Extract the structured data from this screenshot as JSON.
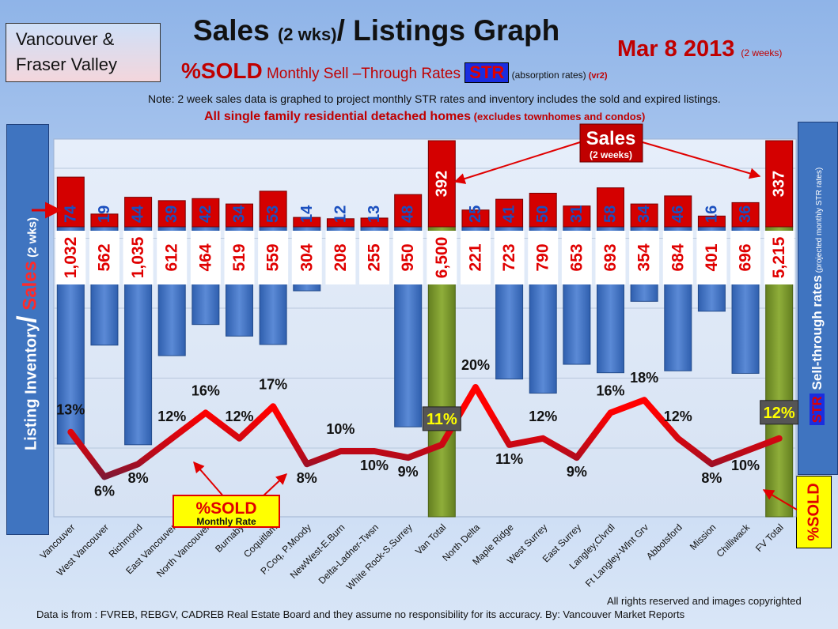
{
  "header": {
    "region_line1": "Vancouver &",
    "region_line2": "Fraser Valley",
    "title_main": "Sales ",
    "title_small": "(2 wks)",
    "title_end": "/ Listings Graph",
    "date_main": "Mar 8 2013",
    "date_small": "(2 weeks)",
    "sub_sold": "%SOLD",
    "sub_rate": " Monthly Sell –Through Rates ",
    "str_label": "STR",
    "sub_absorption": " (absorption rates)",
    "sub_version": " (vr2)",
    "note": "Note: 2 week sales data is graphed to project monthly STR rates and inventory includes the sold and expired listings.",
    "subnote_main": "All single family residential detached homes",
    "subnote_small": " (excludes townhomes and condos)"
  },
  "left_axis": {
    "part1": "Listing Inventory",
    "slash": "/",
    "part2": " Sales",
    "part3": " (2 wks)"
  },
  "right_axis": {
    "str": "STR",
    "text": " Sell-through rates",
    "small": " (projected monthly STR rates)"
  },
  "callouts": {
    "sales_main": "Sales",
    "sales_sub": "(2 weeks)",
    "sold_main": "%SOLD",
    "sold_sub": "Monthly Rate",
    "sold_side": "%SOLD"
  },
  "colors": {
    "listing_bar": "#3a6fc4",
    "total_bar": "#7a9a2a",
    "sales_bar": "#d40000",
    "line_high": "#ff0000",
    "line_low": "#2a2a5a",
    "sales_label": "#1a4fbf"
  },
  "footer": {
    "rights": "All rights reserved and images copyrighted",
    "source": "Data is from : FVREB, REBGV, CADREB Real Estate Board and they assume no responsibility for its accuracy. By: Vancouver Market Reports"
  },
  "chart_data": {
    "type": "bar",
    "categories": [
      "Vancouver",
      "West Vancouver",
      "Richmond",
      "East Vancouver",
      "North Vancouver",
      "Burnaby",
      "Coquitlam",
      "P.Coq, P.Moody",
      "NewWest-E.Burn",
      "Delta-Ladner-Twsn",
      "White Rock-S.Surrey",
      "Van Total",
      "North Delta",
      "Maple Ridge",
      "West Surrey",
      "East Surrey",
      "Langley,Clvrdl",
      "Ft Langley-Wlnt Grv",
      "Abbotsford",
      "Mission",
      "Chilliwack",
      "FV Total"
    ],
    "series": [
      {
        "name": "Listing Inventory",
        "values": [
          1032,
          562,
          1035,
          612,
          464,
          519,
          559,
          304,
          208,
          255,
          950,
          6500,
          221,
          723,
          790,
          653,
          693,
          354,
          684,
          401,
          696,
          5215
        ]
      },
      {
        "name": "Sales",
        "values": [
          74,
          19,
          44,
          39,
          42,
          34,
          53,
          14,
          12,
          13,
          48,
          392,
          25,
          41,
          50,
          31,
          58,
          34,
          46,
          16,
          36,
          337
        ]
      },
      {
        "name": "%SOLD",
        "values": [
          13,
          6,
          8,
          12,
          16,
          12,
          17,
          8,
          10,
          10,
          9,
          11,
          20,
          11,
          12,
          9,
          16,
          18,
          12,
          8,
          10,
          12
        ]
      }
    ],
    "inventory_labels": [
      "1,032",
      "562",
      "1,035",
      "612",
      "464",
      "519",
      "559",
      "304",
      "208",
      "255",
      "950",
      "6,500",
      "221",
      "723",
      "790",
      "653",
      "693",
      "354",
      "684",
      "401",
      "696",
      "5,215"
    ],
    "sales_labels": [
      "74",
      "19",
      "44",
      "39",
      "42",
      "34",
      "53",
      "14",
      "12",
      "13",
      "48",
      "392",
      "25",
      "41",
      "50",
      "31",
      "58",
      "34",
      "46",
      "16",
      "36",
      "337"
    ],
    "percent_labels": [
      "13%",
      "6%",
      "8%",
      "12%",
      "16%",
      "12%",
      "17%",
      "8%",
      "10%",
      "10%",
      "9%",
      "11%",
      "20%",
      "11%",
      "12%",
      "9%",
      "16%",
      "18%",
      "12%",
      "8%",
      "10%",
      "12%"
    ],
    "total_indices": [
      11,
      21
    ],
    "grid": true
  }
}
